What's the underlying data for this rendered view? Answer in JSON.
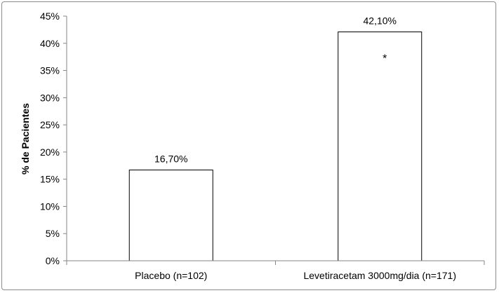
{
  "chart_data": {
    "type": "bar",
    "title": "",
    "xlabel": "",
    "ylabel": "% de Pacientes",
    "ylim": [
      0,
      45
    ],
    "yticks": [
      0,
      5,
      10,
      15,
      20,
      25,
      30,
      35,
      40,
      45
    ],
    "ytick_labels": [
      "0%",
      "5%",
      "10%",
      "15%",
      "20%",
      "25%",
      "30%",
      "35%",
      "40%",
      "45%"
    ],
    "categories": [
      "Placebo (n=102)",
      "Levetiracetam 3000mg/dia (n=171)"
    ],
    "values": [
      16.7,
      42.1
    ],
    "data_labels": [
      "16,70%",
      "42,10%"
    ],
    "annotations": [
      "",
      "*"
    ],
    "grid": false,
    "legend": "none",
    "colors": {
      "bar_fill": "#ffffff",
      "bar_stroke": "#000000",
      "axis": "#868686"
    }
  }
}
